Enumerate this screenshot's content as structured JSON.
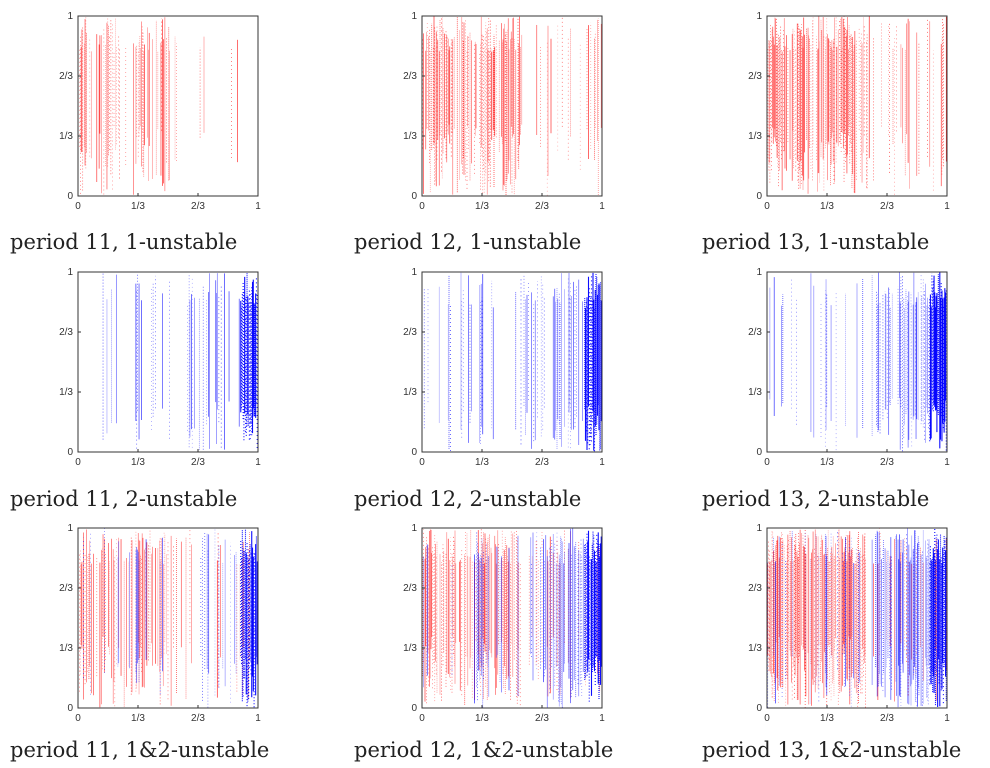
{
  "chart_data": [
    {
      "type": "heatmap",
      "caption": "period 11, 1-unstable",
      "period": 11,
      "unstable": "1",
      "series_colors": [
        "#ff0000"
      ],
      "density": 0.35,
      "xlim": [
        0,
        1
      ],
      "ylim": [
        0,
        1
      ],
      "xticks": [
        "0",
        "1/3",
        "2/3",
        "1"
      ],
      "yticks": [
        "0",
        "1/3",
        "2/3",
        "1"
      ]
    },
    {
      "type": "heatmap",
      "caption": "period 12, 1-unstable",
      "period": 12,
      "unstable": "1",
      "series_colors": [
        "#ff0000"
      ],
      "density": 0.55,
      "xlim": [
        0,
        1
      ],
      "ylim": [
        0,
        1
      ],
      "xticks": [
        "0",
        "1/3",
        "2/3",
        "1"
      ],
      "yticks": [
        "0",
        "1/3",
        "2/3",
        "1"
      ]
    },
    {
      "type": "heatmap",
      "caption": "period 13, 1-unstable",
      "period": 13,
      "unstable": "1",
      "series_colors": [
        "#ff0000"
      ],
      "density": 0.75,
      "xlim": [
        0,
        1
      ],
      "ylim": [
        0,
        1
      ],
      "xticks": [
        "0",
        "1/3",
        "2/3",
        "1"
      ],
      "yticks": [
        "0",
        "1/3",
        "2/3",
        "1"
      ]
    },
    {
      "type": "heatmap",
      "caption": "period 11, 2-unstable",
      "period": 11,
      "unstable": "2",
      "series_colors": [
        "#0000ff"
      ],
      "density": 0.25,
      "xlim": [
        0,
        1
      ],
      "ylim": [
        0,
        1
      ],
      "xticks": [
        "0",
        "1/3",
        "2/3",
        "1"
      ],
      "yticks": [
        "0",
        "1/3",
        "2/3",
        "1"
      ]
    },
    {
      "type": "heatmap",
      "caption": "period 12, 2-unstable",
      "period": 12,
      "unstable": "2",
      "series_colors": [
        "#0000ff"
      ],
      "density": 0.4,
      "xlim": [
        0,
        1
      ],
      "ylim": [
        0,
        1
      ],
      "xticks": [
        "0",
        "1/3",
        "2/3",
        "1"
      ],
      "yticks": [
        "0",
        "1/3",
        "2/3",
        "1"
      ]
    },
    {
      "type": "heatmap",
      "caption": "period 13, 2-unstable",
      "period": 13,
      "unstable": "2",
      "series_colors": [
        "#0000ff"
      ],
      "density": 0.55,
      "xlim": [
        0,
        1
      ],
      "ylim": [
        0,
        1
      ],
      "xticks": [
        "0",
        "1/3",
        "2/3",
        "1"
      ],
      "yticks": [
        "0",
        "1/3",
        "2/3",
        "1"
      ]
    },
    {
      "type": "heatmap",
      "caption": "period 11, 1&2-unstable",
      "period": 11,
      "unstable": "1&2",
      "series_colors": [
        "#ff0000",
        "#0000ff"
      ],
      "density": 0.35,
      "xlim": [
        0,
        1
      ],
      "ylim": [
        0,
        1
      ],
      "xticks": [
        "0",
        "1/3",
        "2/3",
        "1"
      ],
      "yticks": [
        "0",
        "1/3",
        "2/3",
        "1"
      ]
    },
    {
      "type": "heatmap",
      "caption": "period 12, 1&2-unstable",
      "period": 12,
      "unstable": "1&2",
      "series_colors": [
        "#ff0000",
        "#0000ff"
      ],
      "density": 0.55,
      "xlim": [
        0,
        1
      ],
      "ylim": [
        0,
        1
      ],
      "xticks": [
        "0",
        "1/3",
        "2/3",
        "1"
      ],
      "yticks": [
        "0",
        "1/3",
        "2/3",
        "1"
      ]
    },
    {
      "type": "heatmap",
      "caption": "period 13, 1&2-unstable",
      "period": 13,
      "unstable": "1&2",
      "series_colors": [
        "#ff0000",
        "#0000ff"
      ],
      "density": 0.75,
      "xlim": [
        0,
        1
      ],
      "ylim": [
        0,
        1
      ],
      "xticks": [
        "0",
        "1/3",
        "2/3",
        "1"
      ],
      "yticks": [
        "0",
        "1/3",
        "2/3",
        "1"
      ]
    }
  ]
}
